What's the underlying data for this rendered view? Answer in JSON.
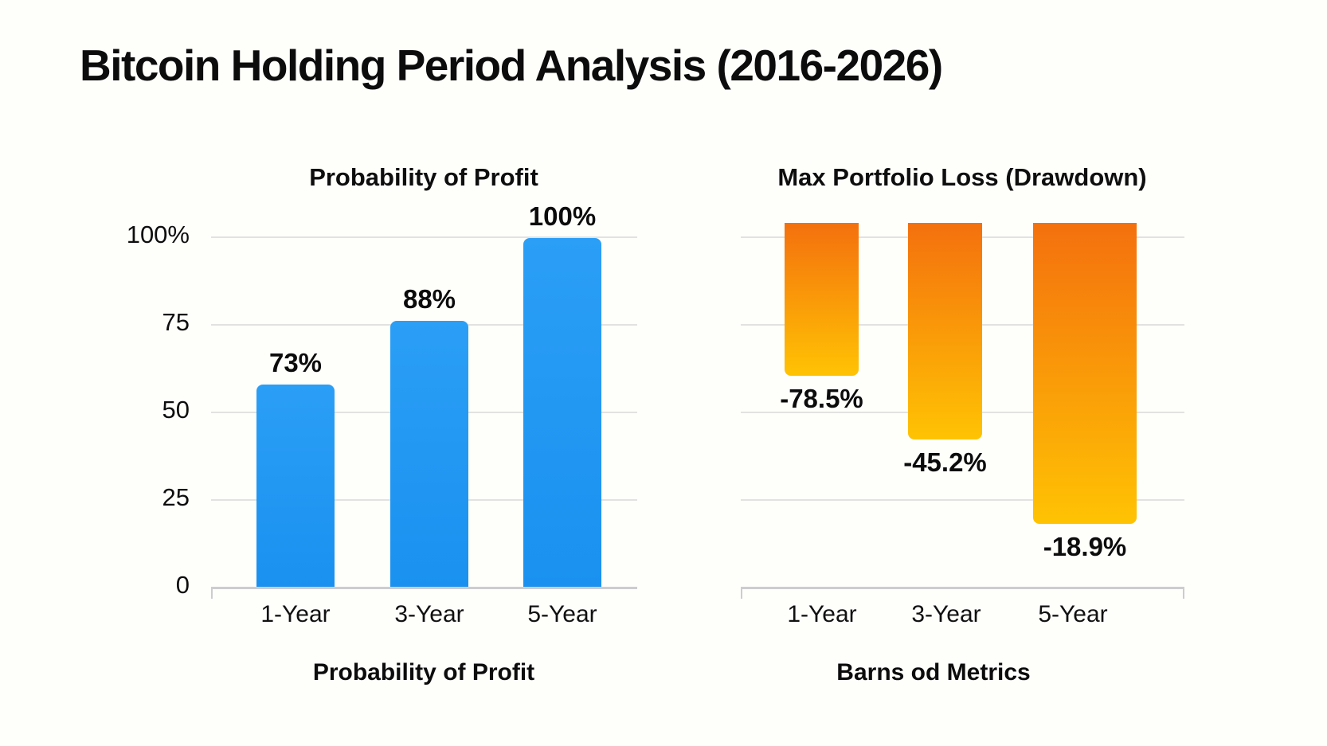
{
  "page": {
    "title": "Bitcoin Holding Period Analysis (2016-2026)",
    "background": "#FEFEFB",
    "text_color": "#0E0E0E",
    "gridline_color": "#E2E2E0"
  },
  "chart_data": [
    {
      "type": "bar",
      "title": "Probability of Profit",
      "xlabel": "Probability of Profit",
      "categories": [
        "1-Year",
        "3-Year",
        "5-Year"
      ],
      "values": [
        73,
        88,
        100
      ],
      "value_labels": [
        "73%",
        "88%",
        "100%"
      ],
      "bar_heights_drawn_pct": [
        57.7,
        75.9,
        99.5
      ],
      "ylim": [
        0,
        100
      ],
      "yticks": [
        {
          "value": 100,
          "label": "100%"
        },
        {
          "value": 75,
          "label": "75"
        },
        {
          "value": 50,
          "label": "50"
        },
        {
          "value": 25,
          "label": "25"
        },
        {
          "value": 0,
          "label": "0"
        }
      ],
      "grid": true,
      "legend": false,
      "orientation": "upward",
      "bar_color_top": "#2B9FF6",
      "bar_color_bottom": "#1A91F0"
    },
    {
      "type": "bar",
      "title": "Max Portfolio Loss (Drawdown)",
      "xlabel": "Barns od Metrics",
      "categories": [
        "1-Year",
        "3-Year",
        "5-Year"
      ],
      "values": [
        -78.5,
        -45.2,
        -18.9
      ],
      "value_labels": [
        "-78.5%",
        "-45.2%",
        "-18.9%"
      ],
      "bar_depths_drawn_pct": [
        39.8,
        58.0,
        82.0
      ],
      "yticks": [],
      "grid": true,
      "legend": false,
      "orientation": "hanging",
      "bar_color_top": "#F4700E",
      "bar_color_bottom": "#FFC303"
    }
  ]
}
